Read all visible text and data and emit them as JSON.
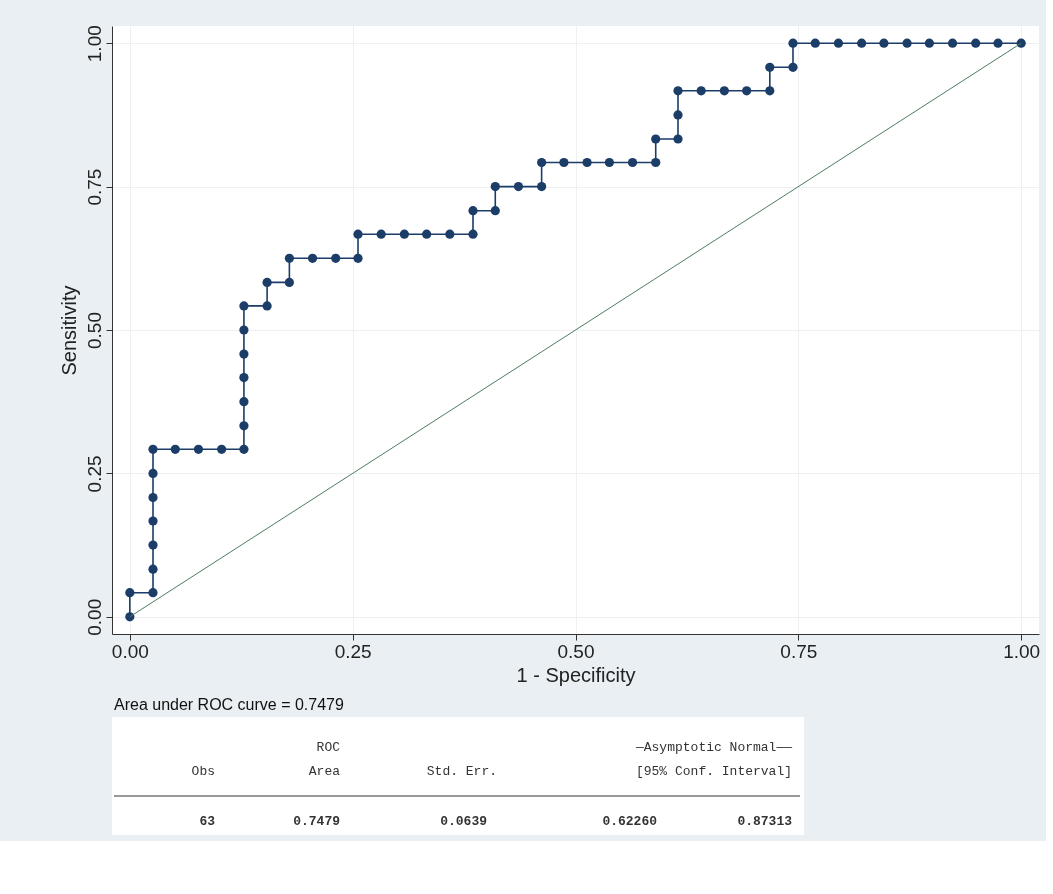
{
  "chart_data": {
    "type": "line",
    "xlabel": "1 - Specificity",
    "ylabel": "Sensitivity",
    "xlim": [
      -0.02,
      1.02
    ],
    "ylim": [
      -0.03,
      1.03
    ],
    "xticks": [
      {
        "value": 0,
        "label": "0.00"
      },
      {
        "value": 0.25,
        "label": "0.25"
      },
      {
        "value": 0.5,
        "label": "0.50"
      },
      {
        "value": 0.75,
        "label": "0.75"
      },
      {
        "value": 1,
        "label": "1.00"
      }
    ],
    "yticks": [
      {
        "value": 0,
        "label": "0.00"
      },
      {
        "value": 0.25,
        "label": "0.25"
      },
      {
        "value": 0.5,
        "label": "0.50"
      },
      {
        "value": 0.75,
        "label": "0.75"
      },
      {
        "value": 1,
        "label": "1.00"
      }
    ],
    "grid": true,
    "series": [
      {
        "marker": "circle",
        "color": "#1b3d68",
        "x": [
          0,
          0,
          0.026,
          0.026,
          0.026,
          0.026,
          0.026,
          0.026,
          0.026,
          0.051,
          0.077,
          0.103,
          0.128,
          0.128,
          0.128,
          0.128,
          0.128,
          0.128,
          0.128,
          0.154,
          0.154,
          0.179,
          0.179,
          0.205,
          0.231,
          0.256,
          0.256,
          0.282,
          0.308,
          0.333,
          0.359,
          0.385,
          0.385,
          0.41,
          0.41,
          0.436,
          0.462,
          0.462,
          0.487,
          0.513,
          0.538,
          0.564,
          0.59,
          0.59,
          0.615,
          0.615,
          0.615,
          0.641,
          0.667,
          0.692,
          0.718,
          0.718,
          0.744,
          0.744,
          0.769,
          0.795,
          0.821,
          0.846,
          0.872,
          0.897,
          0.923,
          0.949,
          0.974,
          1
        ],
        "values": [
          0,
          0.042,
          0.042,
          0.083,
          0.125,
          0.167,
          0.208,
          0.25,
          0.292,
          0.292,
          0.292,
          0.292,
          0.292,
          0.333,
          0.375,
          0.417,
          0.458,
          0.5,
          0.542,
          0.542,
          0.583,
          0.583,
          0.625,
          0.625,
          0.625,
          0.625,
          0.667,
          0.667,
          0.667,
          0.667,
          0.667,
          0.667,
          0.708,
          0.708,
          0.75,
          0.75,
          0.75,
          0.792,
          0.792,
          0.792,
          0.792,
          0.792,
          0.792,
          0.833,
          0.833,
          0.875,
          0.917,
          0.917,
          0.917,
          0.917,
          0.917,
          0.958,
          0.958,
          1,
          1,
          1,
          1,
          1,
          1,
          1,
          1,
          1,
          1,
          1
        ]
      },
      {
        "marker": "none",
        "color": "#4e7d5e",
        "x": [
          0,
          1
        ],
        "values": [
          0,
          1
        ]
      }
    ],
    "annotations": [
      "Area under ROC curve = 0.7479",
      "ROC",
      "—Asymptotic Normal——",
      "Obs",
      "Area",
      "Std. Err.",
      "[95% Conf. Interval]",
      "63",
      "0.7479",
      "0.0639",
      "0.62260",
      "0.87313"
    ]
  }
}
